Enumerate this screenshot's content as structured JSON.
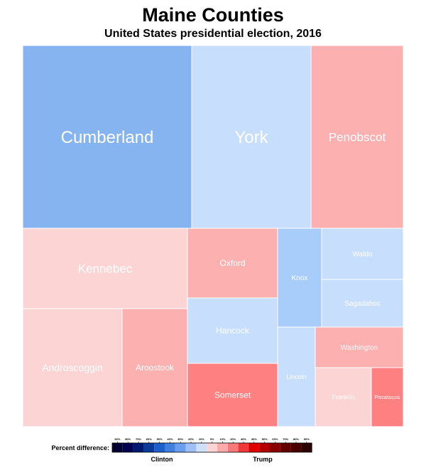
{
  "chart_data": {
    "type": "treemap",
    "title": "Maine Counties",
    "subtitle": "United States presidential election, 2016",
    "colors": {
      "dem_3": "#86b4f0",
      "dem_2": "#a8cdfa",
      "dem_1": "#c7defc",
      "rep_1": "#fdd4d4",
      "rep_2": "#fdb0b0",
      "rep_3": "#fe8080",
      "tile_border": "#ffffff"
    },
    "counties": [
      {
        "name": "Cumberland",
        "shade": "dem_3"
      },
      {
        "name": "York",
        "shade": "dem_1"
      },
      {
        "name": "Penobscot",
        "shade": "rep_2"
      },
      {
        "name": "Kennebec",
        "shade": "rep_1"
      },
      {
        "name": "Androscoggin",
        "shade": "rep_1"
      },
      {
        "name": "Aroostook",
        "shade": "rep_2"
      },
      {
        "name": "Oxford",
        "shade": "rep_2"
      },
      {
        "name": "Hancock",
        "shade": "dem_1"
      },
      {
        "name": "Somerset",
        "shade": "rep_3"
      },
      {
        "name": "Knox",
        "shade": "dem_2"
      },
      {
        "name": "Waldo",
        "shade": "dem_1"
      },
      {
        "name": "Sagadahoc",
        "shade": "dem_1"
      },
      {
        "name": "Lincoln",
        "shade": "dem_1"
      },
      {
        "name": "Washington",
        "shade": "rep_2"
      },
      {
        "name": "Franklin",
        "shade": "rep_1"
      },
      {
        "name": "Piscataquis",
        "shade": "rep_3"
      }
    ],
    "legend": {
      "label": "Percent difference:",
      "left_label": "Clinton",
      "right_label": "Trump",
      "ticks": [
        "90%",
        "80%",
        "70%",
        "60%",
        "50%",
        "40%",
        "30%",
        "20%",
        "10%",
        "0%",
        "10%",
        "20%",
        "30%",
        "40%",
        "50%",
        "60%",
        "70%",
        "80%",
        "90%"
      ],
      "swatches": [
        "#000033",
        "#000050",
        "#00196e",
        "#0a3a9a",
        "#1f5fcc",
        "#3f7fe0",
        "#6b9eec",
        "#9ec0f6",
        "#cfe0fb",
        "#fdd4d4",
        "#fcaaaa",
        "#f77a7a",
        "#f03a3a",
        "#e00000",
        "#b30000",
        "#8a0000",
        "#650000",
        "#480000",
        "#2b0000"
      ]
    }
  }
}
